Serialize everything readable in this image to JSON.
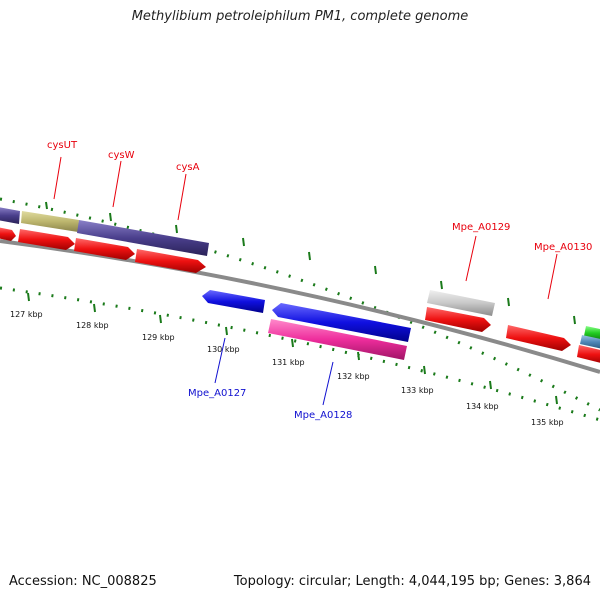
{
  "title": "Methylibium petroleiphilum PM1, complete genome",
  "footer": {
    "accession": "Accession: NC_008825",
    "summary": "Topology: circular; Length: 4,044,195 bp; Genes: 3,864"
  },
  "colors": {
    "backbone": "#8a8a8a",
    "tick": "#1a7a1a",
    "label_forward": "#e8000d",
    "label_reverse": "#1010d0",
    "cds": "#ee1111",
    "gene_olive": "#bdb66e",
    "gene_purple": "#4a3f8c",
    "gene_blue": "#1010e0",
    "gene_pink": "#ee2d9c",
    "gene_grey": "#c8c8c8",
    "gene_green": "#22cc22",
    "gene_steel": "#4f87b8"
  },
  "scale": {
    "labels": [
      "127 kbp",
      "128 kbp",
      "129 kbp",
      "130 kbp",
      "131 kbp",
      "132 kbp",
      "133 kbp",
      "134 kbp",
      "135 kbp"
    ]
  },
  "gene_labels": {
    "forward": [
      "cysUT",
      "cysW",
      "cysA",
      "Mpe_A0129",
      "Mpe_A0130"
    ],
    "reverse": [
      "Mpe_A0127",
      "Mpe_A0128"
    ]
  }
}
